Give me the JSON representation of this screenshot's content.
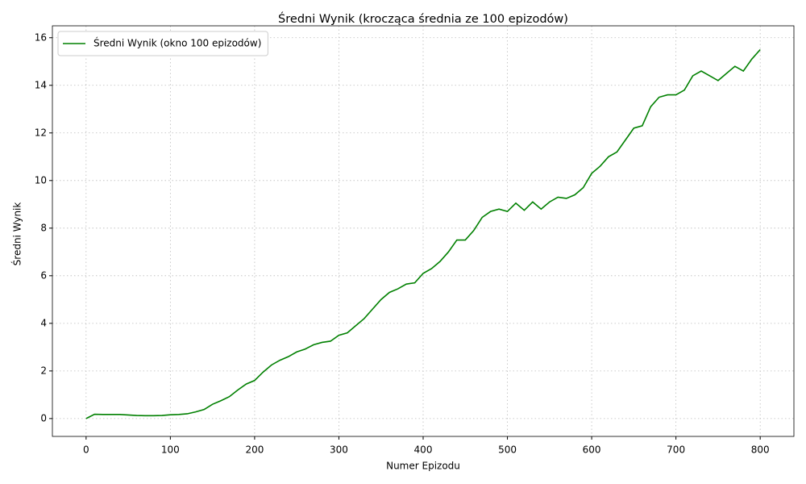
{
  "chart_data": {
    "type": "line",
    "title": "Średni Wynik (krocząca średnia ze 100 epizodów)",
    "xlabel": "Numer Epizodu",
    "ylabel": "Średni Wynik",
    "x": [
      0,
      10,
      20,
      30,
      40,
      50,
      60,
      70,
      80,
      90,
      100,
      110,
      120,
      130,
      140,
      150,
      160,
      170,
      180,
      190,
      200,
      210,
      220,
      230,
      240,
      250,
      260,
      270,
      280,
      290,
      300,
      310,
      320,
      330,
      340,
      350,
      360,
      370,
      380,
      390,
      400,
      410,
      420,
      430,
      440,
      450,
      460,
      470,
      480,
      490,
      500,
      510,
      520,
      530,
      540,
      550,
      560,
      570,
      580,
      590,
      600,
      610,
      620,
      630,
      640,
      650,
      660,
      670,
      680,
      690,
      700,
      710,
      720,
      730,
      740,
      750,
      760,
      770,
      780,
      790,
      800
    ],
    "series": [
      {
        "name": "Średni Wynik (okno 100 epizodów)",
        "color": "#008000",
        "values": [
          0,
          0.18,
          0.17,
          0.17,
          0.17,
          0.15,
          0.13,
          0.12,
          0.12,
          0.13,
          0.16,
          0.17,
          0.2,
          0.28,
          0.38,
          0.6,
          0.75,
          0.92,
          1.2,
          1.45,
          1.6,
          1.95,
          2.25,
          2.45,
          2.6,
          2.8,
          2.92,
          3.1,
          3.2,
          3.25,
          3.5,
          3.6,
          3.9,
          4.2,
          4.6,
          5.0,
          5.3,
          5.45,
          5.65,
          5.7,
          6.1,
          6.3,
          6.6,
          7.0,
          7.5,
          7.5,
          7.9,
          8.45,
          8.7,
          8.8,
          8.7,
          9.05,
          8.75,
          9.1,
          8.8,
          9.1,
          9.3,
          9.25,
          9.4,
          9.7,
          10.3,
          10.6,
          11.0,
          11.2,
          11.7,
          12.2,
          12.3,
          13.1,
          13.5,
          13.6,
          13.6,
          13.8,
          14.4,
          14.6,
          14.4,
          14.2,
          14.5,
          14.8,
          14.6,
          15.1,
          15.5
        ]
      }
    ],
    "xlim": [
      -40,
      840
    ],
    "ylim": [
      -0.75,
      16.5
    ],
    "xticks": [
      0,
      100,
      200,
      300,
      400,
      500,
      600,
      700,
      800
    ],
    "yticks": [
      0,
      2,
      4,
      6,
      8,
      10,
      12,
      14,
      16
    ],
    "grid": true,
    "legend": "upper-left"
  }
}
